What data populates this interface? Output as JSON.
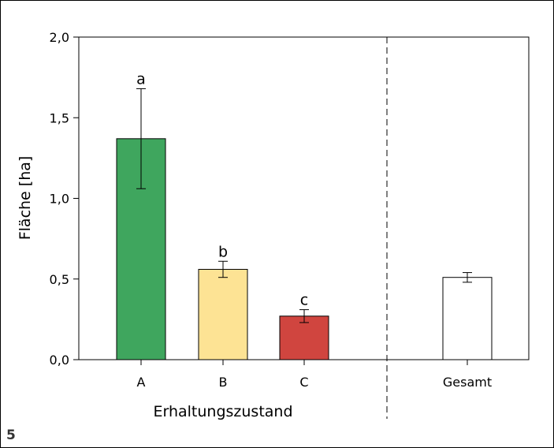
{
  "figure_number": "5",
  "chart_data": {
    "type": "bar",
    "categories": [
      "A",
      "B",
      "C",
      "Gesamt"
    ],
    "values": [
      1.37,
      0.56,
      0.27,
      0.51
    ],
    "errors": [
      0.31,
      0.05,
      0.04,
      0.03
    ],
    "significance_letters": [
      "a",
      "b",
      "c",
      ""
    ],
    "colors": [
      "#3fa65e",
      "#fde394",
      "#d0453f",
      "#ffffff"
    ],
    "ylabel": "Fläche [ha]",
    "xlabel": "Erhaltungszustand",
    "ylim": [
      0,
      2.0
    ],
    "yticks": [
      0.0,
      0.5,
      1.0,
      1.5,
      2.0
    ],
    "ytick_labels": [
      "0,0",
      "0,5",
      "1,0",
      "1,5",
      "2,0"
    ],
    "separator": "dashed line between C and Gesamt",
    "grid": false
  }
}
